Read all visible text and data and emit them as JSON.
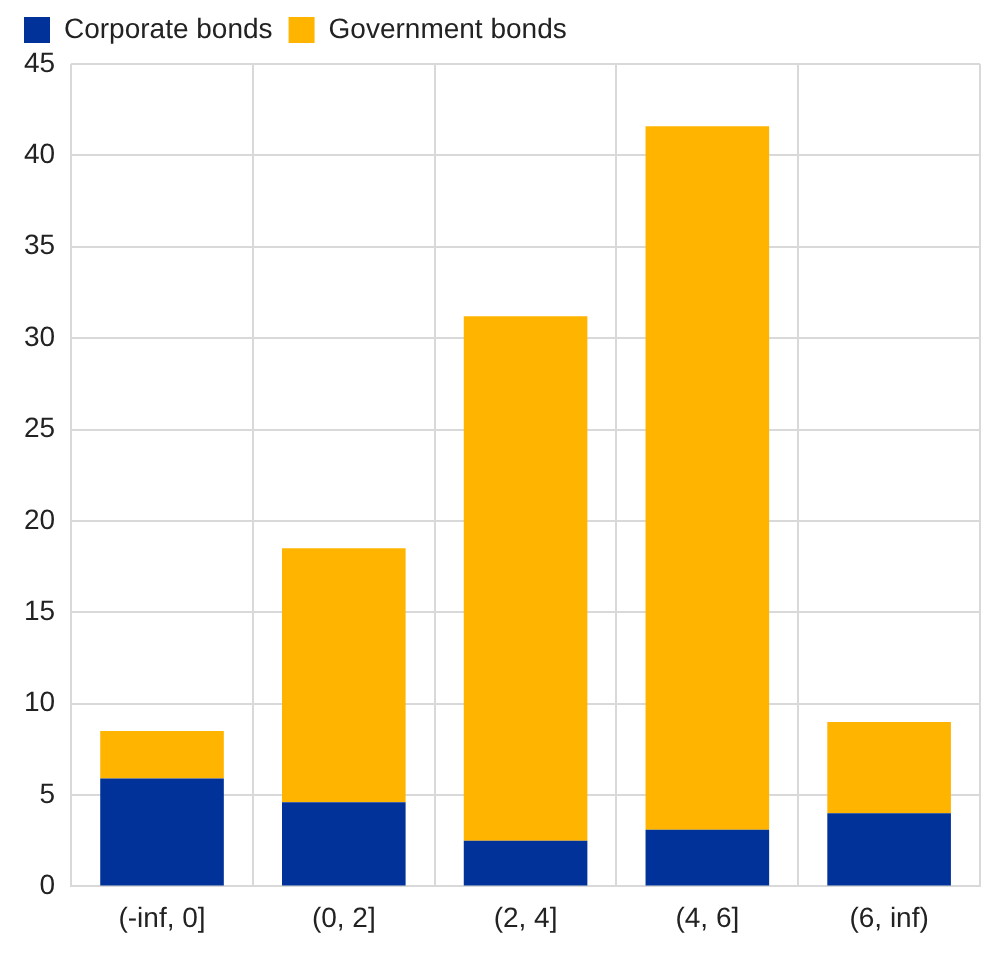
{
  "chart_data": {
    "type": "bar",
    "stacked": true,
    "categories": [
      "(-inf, 0]",
      "(0, 2]",
      "(2, 4]",
      "(4, 6]",
      "(6, inf)"
    ],
    "series": [
      {
        "name": "Corporate bonds",
        "color": "#003299",
        "values": [
          5.9,
          4.6,
          2.5,
          3.1,
          4.0
        ]
      },
      {
        "name": "Government bonds",
        "color": "#ffb400",
        "values": [
          2.6,
          13.9,
          28.7,
          38.5,
          5.0
        ]
      }
    ],
    "ylim": [
      0,
      45
    ],
    "yticks": [
      0,
      5,
      10,
      15,
      20,
      25,
      30,
      35,
      40,
      45
    ],
    "grid": true,
    "legend": "top left"
  }
}
